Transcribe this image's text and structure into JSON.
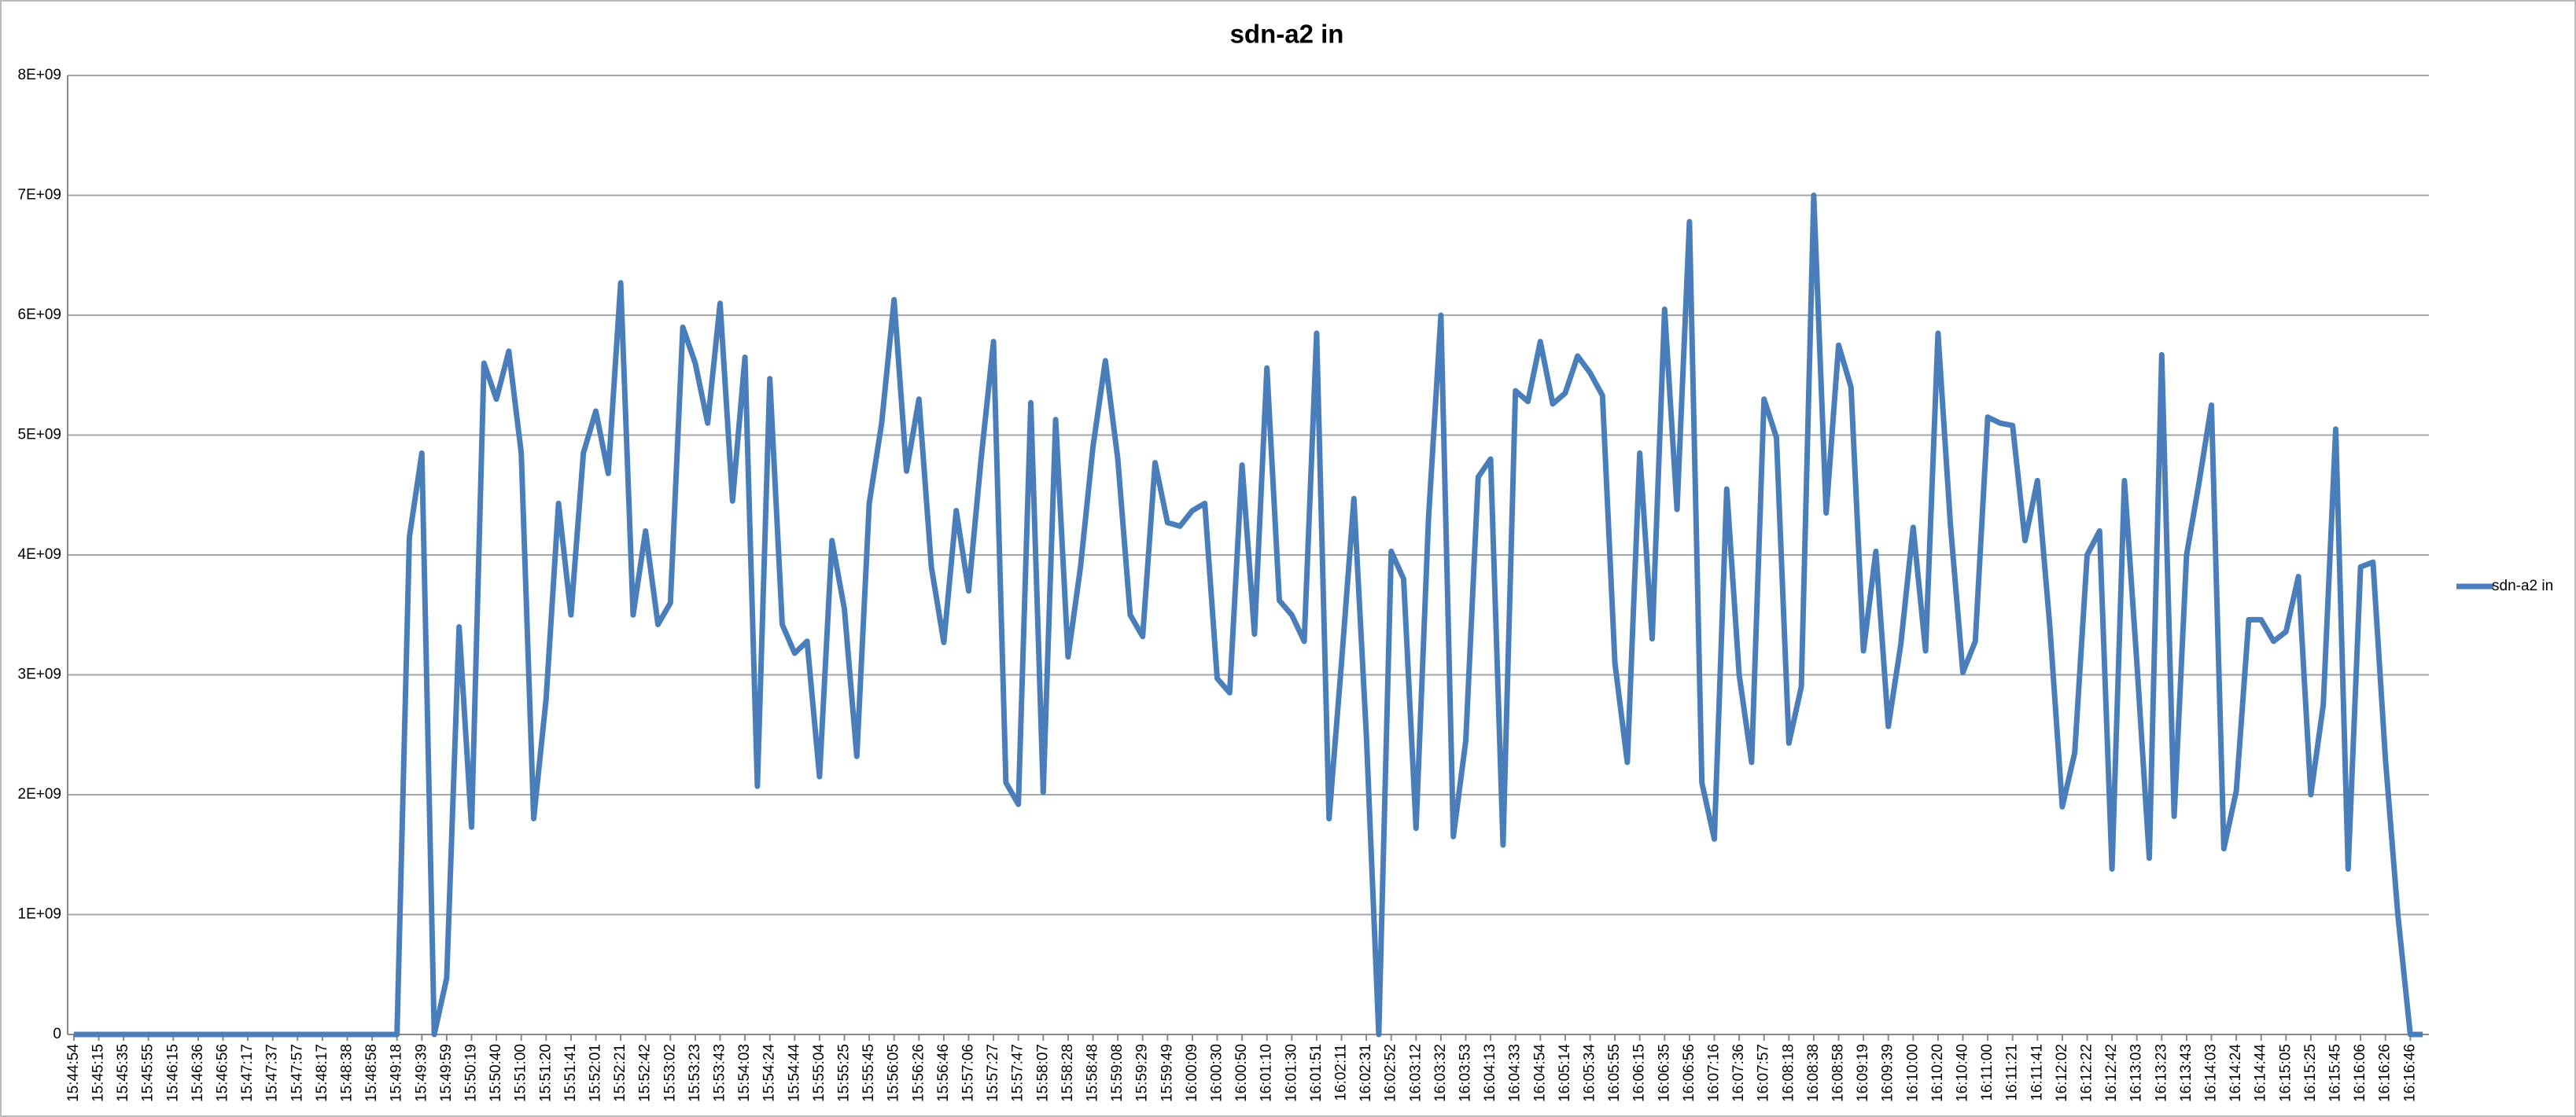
{
  "chart_data": {
    "type": "line",
    "title": "sdn-a2 in",
    "categories": [
      "15:44:54",
      null,
      "15:45:15",
      null,
      "15:45:35",
      null,
      "15:45:55",
      null,
      "15:46:15",
      null,
      "15:46:36",
      null,
      "15:46:56",
      null,
      "15:47:17",
      null,
      "15:47:37",
      null,
      "15:47:57",
      null,
      "15:48:17",
      null,
      "15:48:38",
      null,
      "15:48:58",
      null,
      "15:49:18",
      null,
      "15:49:39",
      null,
      "15:49:59",
      null,
      "15:50:19",
      null,
      "15:50:40",
      null,
      "15:51:00",
      null,
      "15:51:20",
      null,
      "15:51:41",
      null,
      "15:52:01",
      null,
      "15:52:21",
      null,
      "15:52:42",
      null,
      "15:53:02",
      null,
      "15:53:23",
      null,
      "15:53:43",
      null,
      "15:54:03",
      null,
      "15:54:24",
      null,
      "15:54:44",
      null,
      "15:55:04",
      null,
      "15:55:25",
      null,
      "15:55:45",
      null,
      "15:56:05",
      null,
      "15:56:26",
      null,
      "15:56:46",
      null,
      "15:57:06",
      null,
      "15:57:27",
      null,
      "15:57:47",
      null,
      "15:58:07",
      null,
      "15:58:28",
      null,
      "15:58:48",
      null,
      "15:59:08",
      null,
      "15:59:29",
      null,
      "15:59:49",
      null,
      "16:00:09",
      null,
      "16:00:30",
      null,
      "16:00:50",
      null,
      "16:01:10",
      null,
      "16:01:30",
      null,
      "16:01:51",
      null,
      "16:02:11",
      null,
      "16:02:31",
      null,
      "16:02:52",
      null,
      "16:03:12",
      null,
      "16:03:32",
      null,
      "16:03:53",
      null,
      "16:04:13",
      null,
      "16:04:33",
      null,
      "16:04:54",
      null,
      "16:05:14",
      null,
      "16:05:34",
      null,
      "16:05:55",
      null,
      "16:06:15",
      null,
      "16:06:35",
      null,
      "16:06:56",
      null,
      "16:07:16",
      null,
      "16:07:36",
      null,
      "16:07:57",
      null,
      "16:08:18",
      null,
      "16:08:38",
      null,
      "16:08:58",
      null,
      "16:09:19",
      null,
      "16:09:39",
      null,
      "16:10:00",
      null,
      "16:10:20",
      null,
      "16:10:40",
      null,
      "16:11:00",
      null,
      "16:11:21",
      null,
      "16:11:41",
      null,
      "16:12:02",
      null,
      "16:12:22",
      null,
      "16:12:42",
      null,
      "16:13:03",
      null,
      "16:13:23",
      null,
      "16:13:43",
      null,
      "16:14:03",
      null,
      "16:14:24",
      null,
      "16:14:44",
      null,
      "16:15:05",
      null,
      "16:15:25",
      null,
      "16:15:45",
      null,
      "16:16:06",
      null,
      "16:16:26",
      null,
      "16:16:46",
      null
    ],
    "series": [
      {
        "name": "sdn-a2 in",
        "color": "#4a7ebb",
        "values": [
          0,
          0,
          0,
          0,
          0,
          0,
          0,
          0,
          0,
          0,
          0,
          0,
          0,
          0,
          0,
          0,
          0,
          0,
          0,
          0,
          0,
          0,
          0,
          0,
          0,
          0,
          0,
          4150000000,
          4850000000,
          0,
          470000000,
          3400000000,
          1730000000,
          5600000000,
          5300000000,
          5700000000,
          4850000000,
          1800000000,
          2800000000,
          4430000000,
          3500000000,
          4850000000,
          5200000000,
          4680000000,
          6270000000,
          3500000000,
          4200000000,
          3420000000,
          3600000000,
          5900000000,
          5600000000,
          5100000000,
          6100000000,
          4450000000,
          5650000000,
          2070000000,
          5470000000,
          3420000000,
          3180000000,
          3280000000,
          2150000000,
          4120000000,
          3550000000,
          2320000000,
          4430000000,
          5100000000,
          6130000000,
          4700000000,
          5300000000,
          3900000000,
          3270000000,
          4370000000,
          3700000000,
          4800000000,
          5780000000,
          2100000000,
          1920000000,
          5270000000,
          2020000000,
          5130000000,
          3150000000,
          3900000000,
          4900000000,
          5620000000,
          4800000000,
          3500000000,
          3320000000,
          4770000000,
          4270000000,
          4240000000,
          4370000000,
          4430000000,
          2970000000,
          2850000000,
          4750000000,
          3340000000,
          5560000000,
          3620000000,
          3500000000,
          3280000000,
          5850000000,
          1800000000,
          3100000000,
          4470000000,
          2500000000,
          0,
          4030000000,
          3800000000,
          1720000000,
          4300000000,
          6000000000,
          1650000000,
          2450000000,
          4650000000,
          4800000000,
          1580000000,
          5370000000,
          5280000000,
          5780000000,
          5260000000,
          5350000000,
          5660000000,
          5520000000,
          5330000000,
          3100000000,
          2270000000,
          4850000000,
          3300000000,
          6050000000,
          4380000000,
          6780000000,
          2100000000,
          1630000000,
          4550000000,
          3000000000,
          2270000000,
          5300000000,
          4980000000,
          2430000000,
          2900000000,
          7000000000,
          4350000000,
          5750000000,
          5400000000,
          3200000000,
          4030000000,
          2570000000,
          3250000000,
          4230000000,
          3200000000,
          5850000000,
          4250000000,
          3020000000,
          3280000000,
          5150000000,
          5100000000,
          5080000000,
          4120000000,
          4620000000,
          3400000000,
          1900000000,
          2350000000,
          4000000000,
          4200000000,
          1380000000,
          4620000000,
          3100000000,
          1470000000,
          5670000000,
          1820000000,
          4000000000,
          4600000000,
          5250000000,
          1550000000,
          2030000000,
          3460000000,
          3460000000,
          3280000000,
          3360000000,
          3820000000,
          2000000000,
          2750000000,
          5050000000,
          1380000000,
          3900000000,
          3940000000,
          2300000000,
          1000000000,
          0,
          0
        ]
      }
    ],
    "ylim": [
      0,
      8000000000
    ],
    "yticks": [
      0,
      {
        "value": 1000000000,
        "label": "1E+09"
      },
      {
        "value": 2000000000,
        "label": "2E+09"
      },
      {
        "value": 3000000000,
        "label": "3E+09"
      },
      {
        "value": 4000000000,
        "label": "4E+09"
      },
      {
        "value": 5000000000,
        "label": "5E+09"
      },
      {
        "value": 6000000000,
        "label": "6E+09"
      },
      {
        "value": 7000000000,
        "label": "7E+09"
      },
      {
        "value": 8000000000,
        "label": "8E+09"
      }
    ],
    "grid": true,
    "legend": "right"
  }
}
